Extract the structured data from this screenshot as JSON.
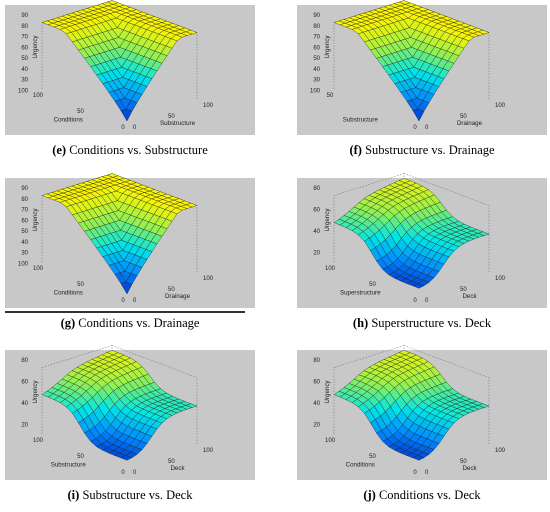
{
  "chart_data": [
    {
      "type": "surface",
      "panel_label": "(e)",
      "caption_text": "Conditions vs. Substructure",
      "zlabel": "Urgency",
      "xlabel": "Conditions",
      "ylabel": "Substructure",
      "z_ticks": [
        "90",
        "80",
        "70",
        "60",
        "50",
        "40",
        "30",
        "100"
      ],
      "x_ticks": [
        "100",
        "50",
        "0"
      ],
      "y_ticks": [
        "0",
        "50",
        "100"
      ],
      "zlim": [
        20,
        90
      ],
      "shape": "bowl"
    },
    {
      "type": "surface",
      "panel_label": "(f)",
      "caption_text": "Substructure vs. Drainage",
      "zlabel": "Urgency",
      "xlabel": "Substructure",
      "ylabel": "Drainage",
      "z_ticks": [
        "90",
        "80",
        "70",
        "60",
        "50",
        "40",
        "30",
        "100"
      ],
      "x_ticks": [
        "50",
        "0"
      ],
      "y_ticks": [
        "0",
        "50",
        "100"
      ],
      "zlim": [
        20,
        90
      ],
      "shape": "bowl"
    },
    {
      "type": "surface",
      "panel_label": "(g)",
      "caption_text": "Conditions vs. Drainage",
      "zlabel": "Urgency",
      "xlabel": "Conditions",
      "ylabel": "Drainage",
      "z_ticks": [
        "90",
        "80",
        "70",
        "60",
        "50",
        "40",
        "30",
        "100"
      ],
      "x_ticks": [
        "100",
        "50",
        "0"
      ],
      "y_ticks": [
        "0",
        "50",
        "100"
      ],
      "zlim": [
        20,
        90
      ],
      "shape": "bowl"
    },
    {
      "type": "surface",
      "panel_label": "(h)",
      "caption_text": "Superstructure vs. Deck",
      "zlabel": "Urgency",
      "xlabel": "Superstructure",
      "ylabel": "Deck",
      "z_ticks": [
        "80",
        "60",
        "40",
        "20"
      ],
      "x_ticks": [
        "100",
        "50",
        "0"
      ],
      "y_ticks": [
        "0",
        "50",
        "100"
      ],
      "zlim": [
        20,
        90
      ],
      "shape": "ridge"
    },
    {
      "type": "surface",
      "panel_label": "(i)",
      "caption_text": "Substructure vs. Deck",
      "zlabel": "Urgency",
      "xlabel": "Substructure",
      "ylabel": "Deck",
      "z_ticks": [
        "80",
        "60",
        "40",
        "20"
      ],
      "x_ticks": [
        "100",
        "50",
        "0"
      ],
      "y_ticks": [
        "0",
        "50",
        "100"
      ],
      "zlim": [
        20,
        90
      ],
      "shape": "ridge"
    },
    {
      "type": "surface",
      "panel_label": "(j)",
      "caption_text": "Conditions vs. Deck",
      "zlabel": "Urgency",
      "xlabel": "Conditions",
      "ylabel": "Deck",
      "z_ticks": [
        "80",
        "60",
        "40",
        "20"
      ],
      "x_ticks": [
        "100",
        "50",
        "0"
      ],
      "y_ticks": [
        "0",
        "50",
        "100"
      ],
      "zlim": [
        20,
        90
      ],
      "shape": "ridge"
    }
  ]
}
